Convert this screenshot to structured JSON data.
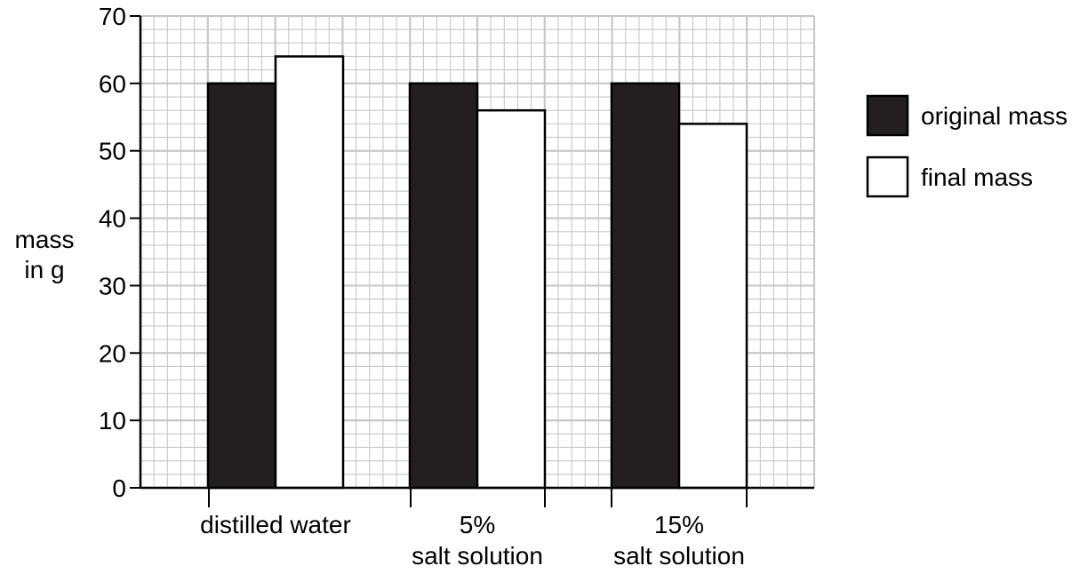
{
  "chart_data": {
    "type": "bar",
    "title": "",
    "xlabel": "",
    "ylabel_lines": [
      "mass",
      "in g"
    ],
    "ylim": [
      0,
      70
    ],
    "yticks": [
      0,
      10,
      20,
      30,
      40,
      50,
      60,
      70
    ],
    "grid": true,
    "legend_position": "right",
    "categories": [
      {
        "lines": [
          "distilled water"
        ]
      },
      {
        "lines": [
          "5%",
          "salt solution"
        ]
      },
      {
        "lines": [
          "15%",
          "salt solution"
        ]
      }
    ],
    "series": [
      {
        "name": "original mass",
        "values": [
          60,
          60,
          60
        ],
        "color": "#231f20"
      },
      {
        "name": "final mass",
        "values": [
          64,
          56,
          54
        ],
        "color": "#ffffff"
      }
    ],
    "grid_color": "#c8c8c8"
  }
}
